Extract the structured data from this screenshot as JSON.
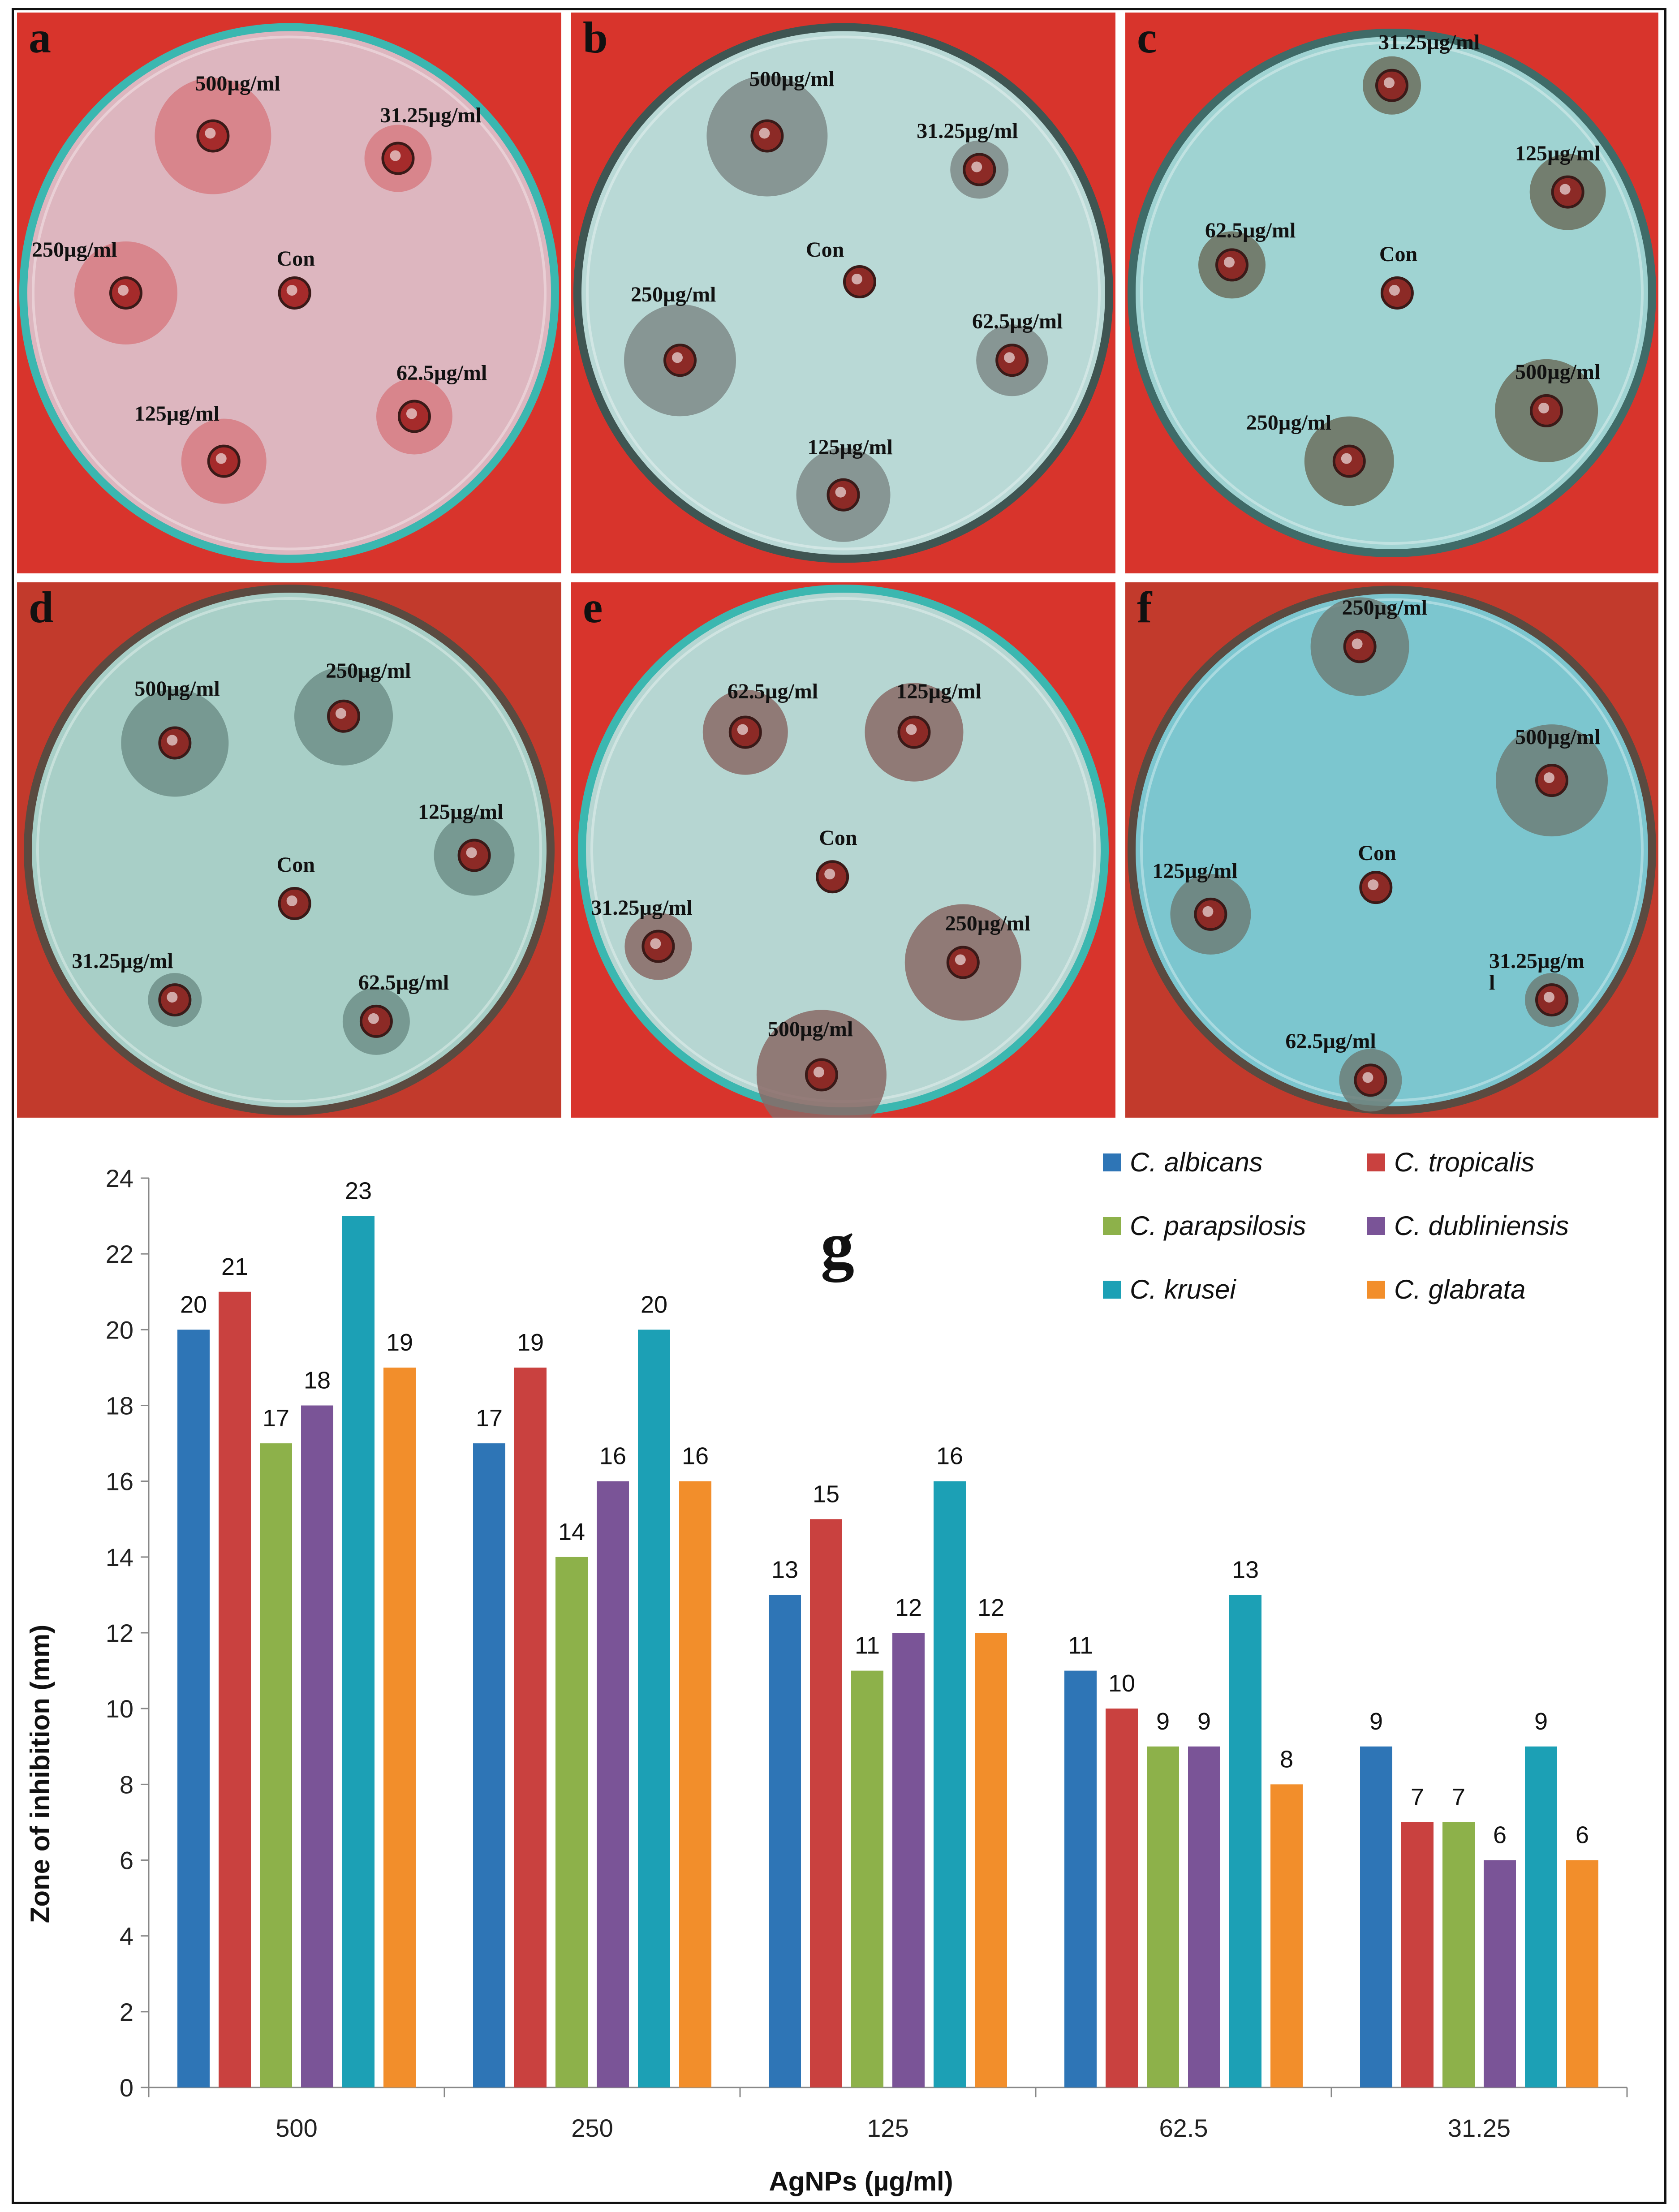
{
  "panels": [
    {
      "id": "a",
      "letter": "a",
      "theme": {
        "bg": "#d8342c",
        "agar": "#ddb6bf",
        "ring": "#3bb7b0",
        "zone": "#d77d83",
        "well": "#a52b2b"
      },
      "wells": [
        {
          "label": "500µg/ml",
          "zone": 20
        },
        {
          "label": "31.25µg/ml",
          "zone": 9
        },
        {
          "label": "250µg/ml",
          "zone": 17
        },
        {
          "label": "Con",
          "zone": 0
        },
        {
          "label": "62.5µg/ml",
          "zone": 11
        },
        {
          "label": "125µg/ml",
          "zone": 13
        }
      ]
    },
    {
      "id": "b",
      "letter": "b",
      "theme": {
        "bg": "#d8342c",
        "agar": "#b9d9d6",
        "ring": "#3f5552",
        "zone": "#7e8a88",
        "well": "#8c2a26"
      },
      "wells": [
        {
          "label": "500µg/ml",
          "zone": 21
        },
        {
          "label": "31.25µg/ml",
          "zone": 7
        },
        {
          "label": "Con",
          "zone": 0
        },
        {
          "label": "250µg/ml",
          "zone": 19
        },
        {
          "label": "62.5µg/ml",
          "zone": 10
        },
        {
          "label": "125µg/ml",
          "zone": 15
        }
      ]
    },
    {
      "id": "c",
      "letter": "c",
      "theme": {
        "bg": "#d8342c",
        "agar": "#9fd3d2",
        "ring": "#3f6b68",
        "zone": "#6b6f5e",
        "well": "#8c2a26"
      },
      "wells": [
        {
          "label": "31.25µg/ml",
          "zone": 7
        },
        {
          "label": "125µg/ml",
          "zone": 11
        },
        {
          "label": "62.5µg/ml",
          "zone": 9
        },
        {
          "label": "Con",
          "zone": 0
        },
        {
          "label": "500µg/ml",
          "zone": 17
        },
        {
          "label": "250µg/ml",
          "zone": 14
        }
      ]
    },
    {
      "id": "d",
      "letter": "d",
      "theme": {
        "bg": "#c23a2c",
        "agar": "#a8cfc7",
        "ring": "#5a4a40",
        "zone": "#6f8f88",
        "well": "#8c2a26"
      },
      "wells": [
        {
          "label": "500µg/ml",
          "zone": 18
        },
        {
          "label": "250µg/ml",
          "zone": 16
        },
        {
          "label": "125µg/ml",
          "zone": 12
        },
        {
          "label": "Con",
          "zone": 0
        },
        {
          "label": "31.25µg/ml",
          "zone": 6
        },
        {
          "label": "62.5µg/ml",
          "zone": 9
        }
      ]
    },
    {
      "id": "e",
      "letter": "e",
      "theme": {
        "bg": "#d8342c",
        "agar": "#b6d6d2",
        "ring": "#3bb7b0",
        "zone": "#8a6a66",
        "well": "#8c2a26"
      },
      "wells": [
        {
          "label": "62.5µg/ml",
          "zone": 13
        },
        {
          "label": "125µg/ml",
          "zone": 16
        },
        {
          "label": "Con",
          "zone": 0
        },
        {
          "label": "31.25µg/ml",
          "zone": 9
        },
        {
          "label": "250µg/ml",
          "zone": 20
        },
        {
          "label": "500µg/ml",
          "zone": 23
        }
      ]
    },
    {
      "id": "f",
      "letter": "f",
      "theme": {
        "bg": "#c23a2c",
        "agar": "#7cc6cf",
        "ring": "#5a4a40",
        "zone": "#6d7e78",
        "well": "#8c2a26"
      },
      "wells": [
        {
          "label": "250µg/ml",
          "zone": 16
        },
        {
          "label": "500µg/ml",
          "zone": 19
        },
        {
          "label": "125µg/ml",
          "zone": 12
        },
        {
          "label": "Con",
          "zone": 0
        },
        {
          "label": "31.25µg/m\nl",
          "zone": 6
        },
        {
          "label": "62.5µg/ml",
          "zone": 8
        }
      ]
    }
  ],
  "chart_data": {
    "type": "bar",
    "panel_label": "g",
    "categories": [
      "500",
      "250",
      "125",
      "62.5",
      "31.25"
    ],
    "xlabel": "AgNPs (µg/ml)",
    "ylabel": "Zone of inhibition (mm)",
    "ylim": [
      0,
      24
    ],
    "yticks": [
      0,
      2,
      4,
      6,
      8,
      10,
      12,
      14,
      16,
      18,
      20,
      22,
      24
    ],
    "grid": false,
    "legend_position": "top-right",
    "series": [
      {
        "name": "C. albicans",
        "color": "#2e75b6",
        "values": [
          20,
          17,
          13,
          11,
          9
        ]
      },
      {
        "name": "C. tropicalis",
        "color": "#c9413f",
        "values": [
          21,
          19,
          15,
          10,
          7
        ]
      },
      {
        "name": "C. parapsilosis",
        "color": "#8db14a",
        "values": [
          17,
          14,
          11,
          9,
          7
        ]
      },
      {
        "name": "C. dubliniensis",
        "color": "#7a5497",
        "values": [
          18,
          16,
          12,
          9,
          6
        ]
      },
      {
        "name": "C. krusei",
        "color": "#1ca0b5",
        "values": [
          23,
          20,
          16,
          13,
          9
        ]
      },
      {
        "name": "C. glabrata",
        "color": "#f28e2b",
        "values": [
          19,
          16,
          12,
          8,
          6
        ]
      }
    ]
  }
}
